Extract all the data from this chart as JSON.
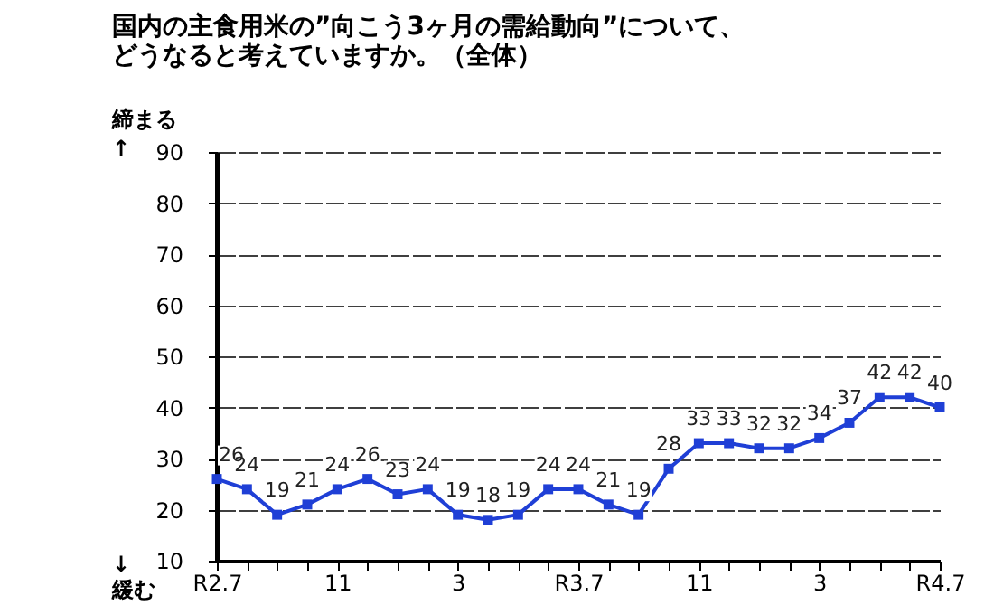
{
  "chart_data": {
    "type": "line",
    "title": [
      "国内の主食用米の”向こう3ヶ月の需給動向”について、",
      "どうなると考えていますか。（全体）"
    ],
    "categories": [
      "R2.7",
      null,
      null,
      null,
      "11",
      null,
      null,
      null,
      "3",
      null,
      null,
      null,
      "R3.7",
      null,
      null,
      null,
      "11",
      null,
      null,
      null,
      "3",
      null,
      null,
      null,
      "R4.7"
    ],
    "series": [
      {
        "color": "#1f3fd6",
        "values": [
          26,
          24,
          19,
          21,
          24,
          26,
          23,
          24,
          19,
          18,
          19,
          24,
          24,
          21,
          19,
          28,
          33,
          33,
          32,
          32,
          34,
          37,
          42,
          42,
          40
        ]
      }
    ],
    "ylim": [
      10,
      90
    ],
    "yticks": [
      10,
      20,
      30,
      40,
      50,
      60,
      70,
      80,
      90
    ],
    "grid": "y",
    "marker": "square",
    "line_style": "solid",
    "data_labels": true,
    "annotations": [
      "締まる",
      "↑",
      "↓",
      "緩む"
    ]
  }
}
